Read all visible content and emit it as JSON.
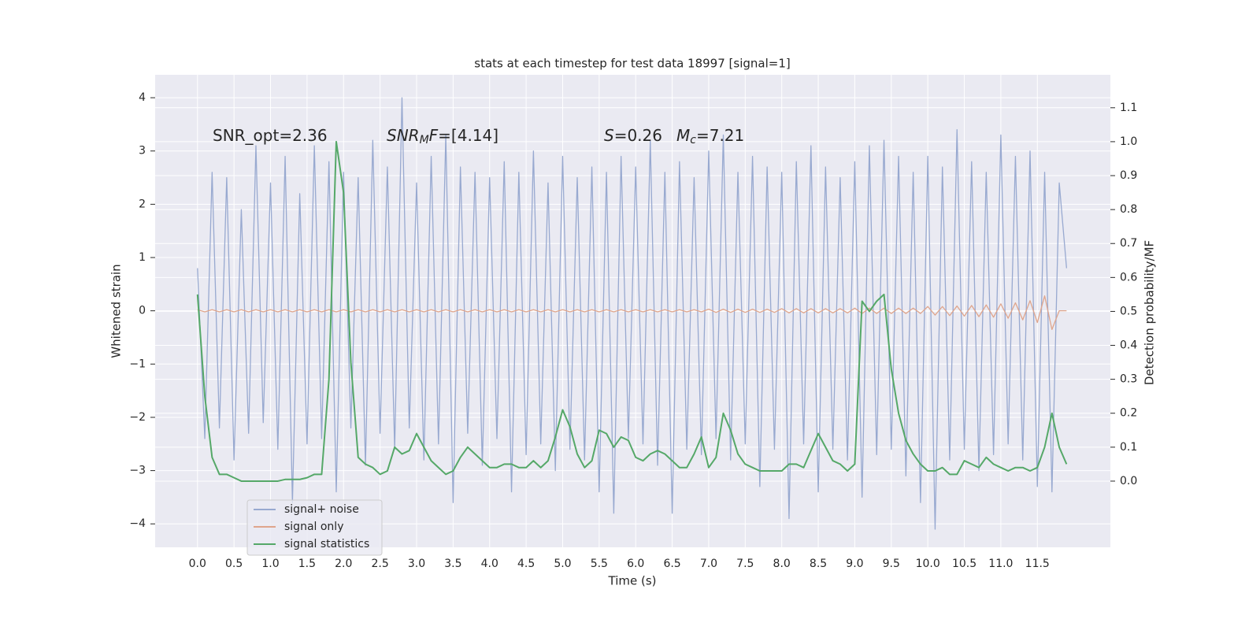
{
  "chart_data": {
    "type": "line",
    "title": "stats at each timestep for test data 18997 [signal=1]",
    "xlabel": "Time (s)",
    "ylabel": "Whitened strain",
    "y2label": "Detection probability/MF",
    "annotations": [
      [
        {
          "text": "SNR_opt=2.36"
        }
      ],
      [
        {
          "text": "SNR",
          "italic": true
        },
        {
          "text": "M",
          "italic": true,
          "sub": true
        },
        {
          "text": "F",
          "italic": true
        },
        {
          "text": "=[4.14]"
        }
      ],
      [
        {
          "text": "S",
          "italic": true
        },
        {
          "text": "=0.26"
        }
      ],
      [
        {
          "text": "M",
          "italic": true
        },
        {
          "text": "c",
          "italic": true,
          "sub": true
        },
        {
          "text": "=7.21"
        }
      ]
    ],
    "x": [
      0.0,
      0.1,
      0.2,
      0.3,
      0.4,
      0.5,
      0.6,
      0.7,
      0.8,
      0.9,
      1.0,
      1.1,
      1.2,
      1.3,
      1.4,
      1.5,
      1.6,
      1.7,
      1.8,
      1.9,
      2.0,
      2.1,
      2.2,
      2.3,
      2.4,
      2.5,
      2.6,
      2.7,
      2.8,
      2.9,
      3.0,
      3.1,
      3.2,
      3.3,
      3.4,
      3.5,
      3.6,
      3.7,
      3.8,
      3.9,
      4.0,
      4.1,
      4.2,
      4.3,
      4.4,
      4.5,
      4.6,
      4.7,
      4.8,
      4.9,
      5.0,
      5.1,
      5.2,
      5.3,
      5.4,
      5.5,
      5.6,
      5.7,
      5.8,
      5.9,
      6.0,
      6.1,
      6.2,
      6.3,
      6.4,
      6.5,
      6.6,
      6.7,
      6.8,
      6.9,
      7.0,
      7.1,
      7.2,
      7.3,
      7.4,
      7.5,
      7.6,
      7.7,
      7.8,
      7.9,
      8.0,
      8.1,
      8.2,
      8.3,
      8.4,
      8.5,
      8.6,
      8.7,
      8.8,
      8.9,
      9.0,
      9.1,
      9.2,
      9.3,
      9.4,
      9.5,
      9.6,
      9.7,
      9.8,
      9.9,
      10.0,
      10.1,
      10.2,
      10.3,
      10.4,
      10.5,
      10.6,
      10.7,
      10.8,
      10.9,
      11.0,
      11.1,
      11.2,
      11.3,
      11.4,
      11.5,
      11.6,
      11.7,
      11.8,
      11.9
    ],
    "series": [
      {
        "name": "signal+ noise",
        "color": "#98a9d0",
        "values": [
          0.8,
          -2.4,
          2.6,
          -2.2,
          2.5,
          -2.8,
          1.9,
          -2.3,
          3.1,
          -2.1,
          2.4,
          -2.6,
          2.9,
          -3.6,
          2.2,
          -2.5,
          3.1,
          -2.4,
          2.8,
          -3.4,
          2.6,
          -2.2,
          2.5,
          -2.9,
          3.2,
          -2.3,
          2.7,
          -2.6,
          4.0,
          -2.2,
          2.4,
          -2.8,
          2.9,
          -2.5,
          3.3,
          -3.6,
          2.7,
          -2.3,
          2.6,
          -2.9,
          2.5,
          -2.4,
          2.8,
          -3.4,
          2.6,
          -2.7,
          3.0,
          -2.5,
          2.4,
          -3.0,
          2.9,
          -2.6,
          2.5,
          -2.8,
          2.7,
          -3.4,
          2.6,
          -3.8,
          2.9,
          -2.4,
          2.7,
          -2.5,
          3.2,
          -2.9,
          2.6,
          -3.8,
          2.8,
          -2.6,
          2.5,
          -2.7,
          3.0,
          -2.4,
          3.3,
          -2.8,
          2.6,
          -2.5,
          2.9,
          -3.3,
          2.7,
          -2.6,
          2.6,
          -3.9,
          2.8,
          -2.5,
          3.1,
          -3.4,
          2.7,
          -2.6,
          2.5,
          -2.8,
          2.8,
          -3.5,
          3.1,
          -2.7,
          3.2,
          -2.6,
          2.9,
          -3.1,
          2.6,
          -3.6,
          2.9,
          -4.1,
          2.7,
          -2.8,
          3.4,
          -2.6,
          2.8,
          -3.0,
          2.6,
          -2.7,
          3.3,
          -2.5,
          2.9,
          -2.8,
          3.0,
          -3.3,
          2.6,
          -3.4,
          2.4,
          0.8
        ]
      },
      {
        "name": "signal only",
        "color": "#dfa58c",
        "values": [
          0.02,
          -0.02,
          0.02,
          -0.02,
          0.02,
          -0.02,
          0.02,
          -0.02,
          0.02,
          -0.02,
          0.02,
          -0.02,
          0.02,
          -0.02,
          0.02,
          -0.02,
          0.02,
          -0.02,
          0.02,
          -0.02,
          0.02,
          -0.02,
          0.02,
          -0.02,
          0.02,
          -0.02,
          0.02,
          -0.02,
          0.02,
          -0.02,
          0.02,
          -0.02,
          0.02,
          -0.02,
          0.02,
          -0.02,
          0.02,
          -0.02,
          0.02,
          -0.02,
          0.02,
          -0.02,
          0.02,
          -0.02,
          0.02,
          -0.02,
          0.02,
          -0.02,
          0.02,
          -0.02,
          0.02,
          -0.02,
          0.02,
          -0.02,
          0.02,
          -0.02,
          0.02,
          -0.02,
          0.02,
          -0.02,
          0.02,
          -0.02,
          0.02,
          -0.02,
          0.02,
          -0.02,
          0.02,
          -0.02,
          0.02,
          -0.02,
          0.03,
          -0.03,
          0.03,
          -0.03,
          0.03,
          -0.03,
          0.03,
          -0.03,
          0.03,
          -0.03,
          0.04,
          -0.04,
          0.04,
          -0.04,
          0.04,
          -0.04,
          0.04,
          -0.04,
          0.04,
          -0.04,
          0.05,
          -0.05,
          0.05,
          -0.05,
          0.05,
          -0.05,
          0.05,
          -0.05,
          0.05,
          -0.05,
          0.08,
          -0.08,
          0.08,
          -0.09,
          0.09,
          -0.1,
          0.1,
          -0.11,
          0.11,
          -0.12,
          0.13,
          -0.14,
          0.15,
          -0.17,
          0.19,
          -0.22,
          0.28,
          -0.35,
          0.0,
          0.0
        ]
      },
      {
        "name": "signal statistics",
        "color": "#55a868",
        "axis": "y2",
        "values": [
          0.55,
          0.25,
          0.07,
          0.02,
          0.02,
          0.01,
          0.0,
          0.0,
          0.0,
          0.0,
          0.0,
          0.0,
          0.005,
          0.005,
          0.005,
          0.01,
          0.02,
          0.02,
          0.3,
          1.0,
          0.85,
          0.35,
          0.07,
          0.05,
          0.04,
          0.02,
          0.03,
          0.1,
          0.08,
          0.09,
          0.14,
          0.1,
          0.06,
          0.04,
          0.02,
          0.03,
          0.07,
          0.1,
          0.08,
          0.06,
          0.04,
          0.04,
          0.05,
          0.05,
          0.04,
          0.04,
          0.06,
          0.04,
          0.06,
          0.13,
          0.21,
          0.16,
          0.08,
          0.04,
          0.06,
          0.15,
          0.14,
          0.1,
          0.13,
          0.12,
          0.07,
          0.06,
          0.08,
          0.09,
          0.08,
          0.06,
          0.04,
          0.04,
          0.08,
          0.13,
          0.04,
          0.07,
          0.2,
          0.15,
          0.08,
          0.05,
          0.04,
          0.03,
          0.03,
          0.03,
          0.03,
          0.05,
          0.05,
          0.04,
          0.09,
          0.14,
          0.1,
          0.06,
          0.05,
          0.03,
          0.05,
          0.53,
          0.5,
          0.53,
          0.55,
          0.33,
          0.2,
          0.12,
          0.08,
          0.05,
          0.03,
          0.03,
          0.04,
          0.02,
          0.02,
          0.06,
          0.05,
          0.04,
          0.07,
          0.05,
          0.04,
          0.03,
          0.04,
          0.04,
          0.03,
          0.04,
          0.1,
          0.2,
          0.1,
          0.05
        ]
      }
    ],
    "xlim": [
      -0.58,
      12.5
    ],
    "ylim": [
      -4.44,
      4.43
    ],
    "y2lim": [
      -0.195,
      1.197
    ],
    "xticks": [
      {
        "value": 0,
        "label": "0.0"
      },
      0.5,
      {
        "value": 1,
        "label": "1.0"
      },
      1.5,
      {
        "value": 2,
        "label": "2.0"
      },
      2.5,
      {
        "value": 3,
        "label": "3.0"
      },
      3.5,
      {
        "value": 4,
        "label": "4.0"
      },
      4.5,
      {
        "value": 5,
        "label": "5.0"
      },
      5.5,
      {
        "value": 6,
        "label": "6.0"
      },
      6.5,
      {
        "value": 7,
        "label": "7.0"
      },
      7.5,
      {
        "value": 8,
        "label": "8.0"
      },
      8.5,
      {
        "value": 9,
        "label": "9.0"
      },
      9.5,
      {
        "value": 10,
        "label": "10.0"
      },
      10.5,
      {
        "value": 11,
        "label": "11.0"
      },
      11.5
    ],
    "yticks": [
      {
        "value": -4,
        "label": "−4"
      },
      {
        "value": -3,
        "label": "−3"
      },
      {
        "value": -2,
        "label": "−2"
      },
      {
        "value": -1,
        "label": "−1"
      },
      0,
      1,
      2,
      3,
      4
    ],
    "y2ticks": [
      {
        "value": 0,
        "label": "0.0"
      },
      0.1,
      0.2,
      0.3,
      0.4,
      0.5,
      0.6,
      0.7,
      0.8,
      0.9,
      {
        "value": 1,
        "label": "1.0"
      },
      1.1
    ],
    "grid": true,
    "legend": "lower left"
  }
}
